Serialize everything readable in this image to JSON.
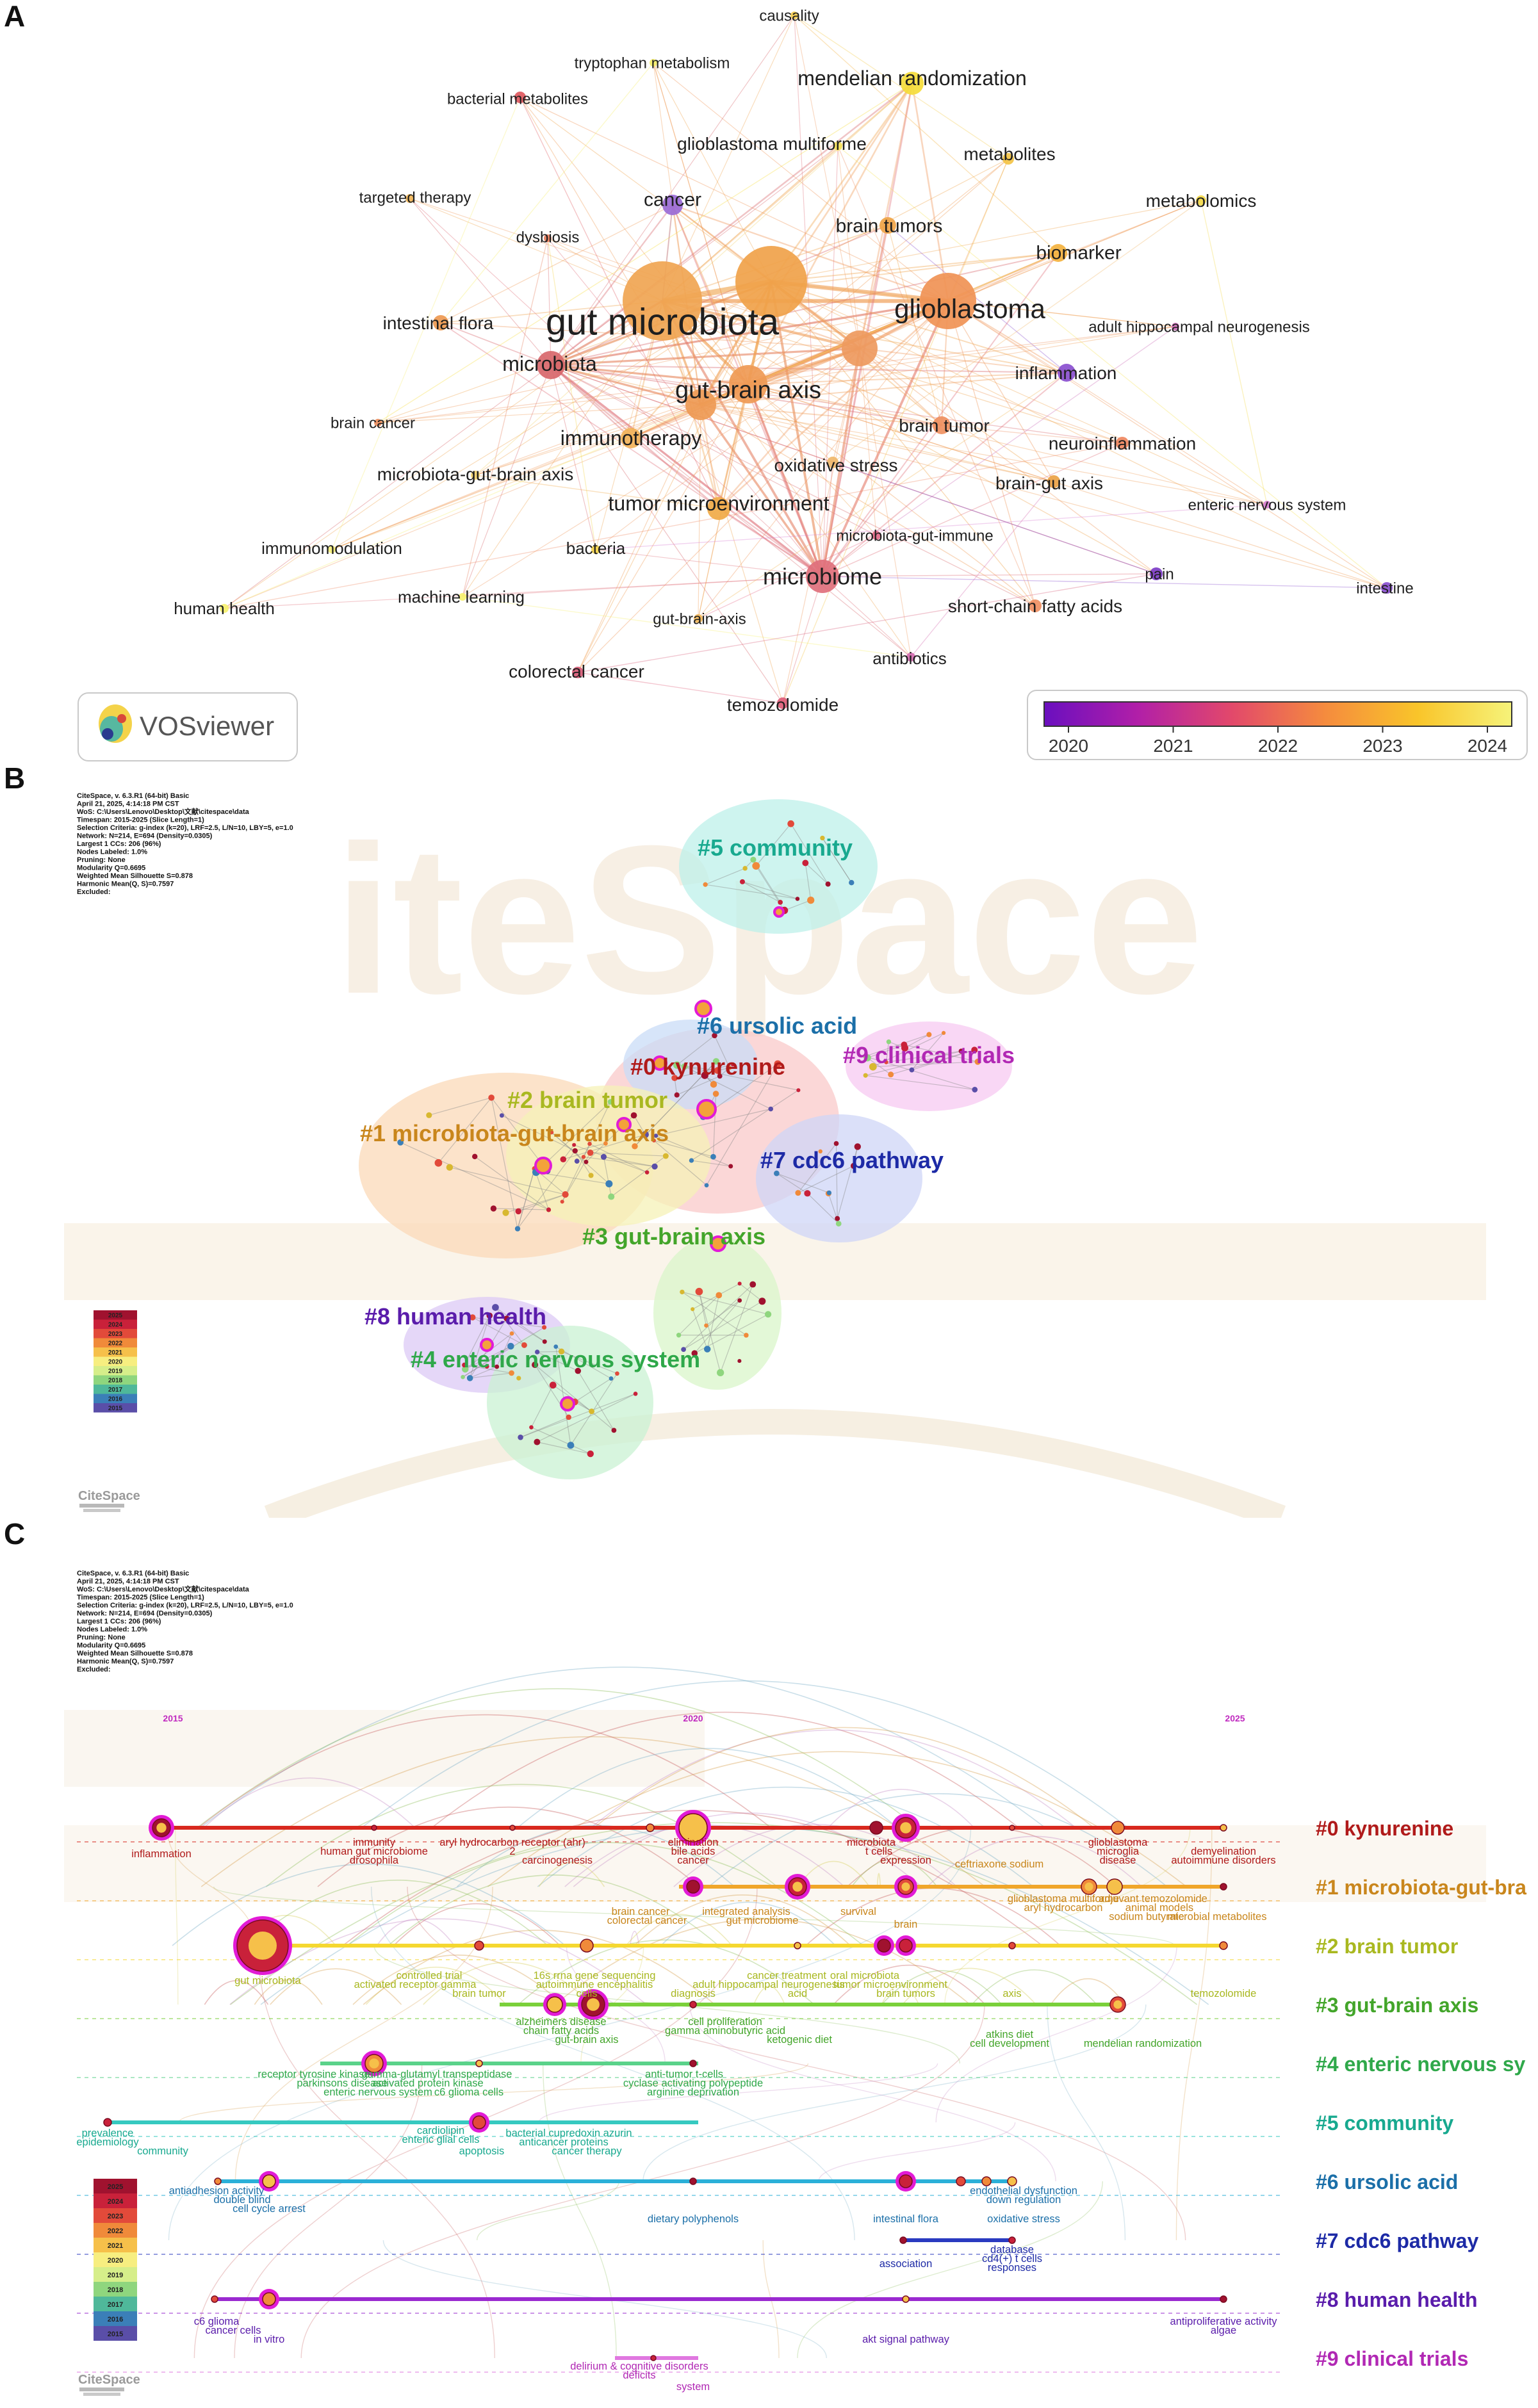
{
  "panel_a": {
    "letter": "A",
    "logo_text": "VOSviewer",
    "legend_ticks": [
      "2020",
      "2021",
      "2022",
      "2023",
      "2024"
    ],
    "legend_colors": [
      "#6a0fbf",
      "#b11fa8",
      "#e2486b",
      "#f58b3e",
      "#f9c52a",
      "#f6f37a"
    ],
    "nodes": [
      {
        "label": "causality",
        "color": "#f3cb4c"
      },
      {
        "label": "tryptophan metabolism",
        "color": "#f6ef6a"
      },
      {
        "label": "mendelian randomization",
        "color": "#f5dc3a"
      },
      {
        "label": "bacterial metabolites",
        "color": "#e0585e"
      },
      {
        "label": "glioblastoma multiforme",
        "color": "#f6e25a"
      },
      {
        "label": "metabolites",
        "color": "#f3c345"
      },
      {
        "label": "targeted therapy",
        "color": "#f3b85a"
      },
      {
        "label": "cancer",
        "color": "#9a6ad6"
      },
      {
        "label": "brain tumors",
        "color": "#f0a446"
      },
      {
        "label": "metabolomics",
        "color": "#f4da4a"
      },
      {
        "label": "dysbiosis",
        "color": "#e47a5a"
      },
      {
        "label": "biomarker",
        "color": "#f3b23f"
      },
      {
        "label": "intestinal flora",
        "color": "#ee9950"
      },
      {
        "label": "gut microbiota",
        "color": "#f0a552"
      },
      {
        "label": "glioblastoma",
        "color": "#f09255"
      },
      {
        "label": "adult hippocampal neurogenesis",
        "color": "#cc6db8"
      },
      {
        "label": "microbiota",
        "color": "#d8676b"
      },
      {
        "label": "gut-brain axis",
        "color": "#ef9a55"
      },
      {
        "label": "inflammation",
        "color": "#8a4fcf"
      },
      {
        "label": "brain cancer",
        "color": "#eb8e5e"
      },
      {
        "label": "brain tumor",
        "color": "#ef9060"
      },
      {
        "label": "immunotherapy",
        "color": "#f2b35a"
      },
      {
        "label": "neuroinflammation",
        "color": "#ef8760"
      },
      {
        "label": "microbiota-gut-brain axis",
        "color": "#f2d26e"
      },
      {
        "label": "oxidative stress",
        "color": "#f0b76a"
      },
      {
        "label": "brain-gut axis",
        "color": "#eba245"
      },
      {
        "label": "tumor microenvironment",
        "color": "#f0aa48"
      },
      {
        "label": "enteric nervous system",
        "color": "#d67ed0"
      },
      {
        "label": "microbiota-gut-immune",
        "color": "#e56a8a"
      },
      {
        "label": "immunomodulation",
        "color": "#f5ef7a"
      },
      {
        "label": "bacteria",
        "color": "#f4d44a"
      },
      {
        "label": "microbiome",
        "color": "#e0707c"
      },
      {
        "label": "pain",
        "color": "#7c3cc7"
      },
      {
        "label": "intestine",
        "color": "#8a4fcf"
      },
      {
        "label": "machine learning",
        "color": "#f6f16f"
      },
      {
        "label": "short-chain fatty acids",
        "color": "#ee8f62"
      },
      {
        "label": "human health",
        "color": "#f6f16f"
      },
      {
        "label": "gut-brain-axis",
        "color": "#f2b85a"
      },
      {
        "label": "antibiotics",
        "color": "#d36ab0"
      },
      {
        "label": "colorectal cancer",
        "color": "#d85b77"
      },
      {
        "label": "temozolomide",
        "color": "#df5d78"
      }
    ]
  },
  "panel_b": {
    "letter": "B",
    "header_lines": [
      "CiteSpace, v. 6.3.R1 (64-bit) Basic",
      "April 21, 2025, 4:14:18 PM CST",
      "WoS: C:\\Users\\Lenovo\\Desktop\\文献\\citespace\\data",
      "Timespan: 2015-2025 (Slice Length=1)",
      "Selection Criteria: g-index (k=20), LRF=2.5, L/N=10, LBY=5, e=1.0",
      "Network: N=214, E=694 (Density=0.0305)",
      "Largest 1 CCs: 206 (96%)",
      "Nodes Labeled: 1.0%",
      "Pruning: None",
      "Modularity Q=0.6695",
      "Weighted Mean Silhouette S=0.878",
      "Harmonic Mean(Q, S)=0.7597",
      "Excluded:"
    ],
    "clusters": [
      {
        "label": "#5 community",
        "color": "#18a98f"
      },
      {
        "label": "#6 ursolic acid",
        "color": "#1b6fa8"
      },
      {
        "label": "#9 clinical trials",
        "color": "#b128b4"
      },
      {
        "label": "#0 kynurenine",
        "color": "#b01a1a"
      },
      {
        "label": "#2 brain tumor",
        "color": "#a9b820"
      },
      {
        "label": "#1 microbiota-gut-brain axis",
        "color": "#c9861c"
      },
      {
        "label": "#7 cdc6 pathway",
        "color": "#1d2aa6"
      },
      {
        "label": "#3 gut-brain axis",
        "color": "#43a52a"
      },
      {
        "label": "#8 human health",
        "color": "#5a1cab"
      },
      {
        "label": "#4 enteric nervous system",
        "color": "#2fa84a"
      }
    ],
    "legend_years": [
      "2025",
      "2024",
      "2023",
      "2022",
      "2021",
      "2020",
      "2019",
      "2018",
      "2017",
      "2016",
      "2015"
    ],
    "legend_colors": [
      "#a0122f",
      "#c9213a",
      "#e24a3a",
      "#f08a3a",
      "#f6c04a",
      "#f7ee80",
      "#d6ee8a",
      "#8fd67e",
      "#4fb89a",
      "#3b7fb8",
      "#5a4ea8"
    ],
    "logo_text": "CiteSpace"
  },
  "panel_c": {
    "letter": "C",
    "header_lines": [
      "CiteSpace, v. 6.3.R1 (64-bit) Basic",
      "April 21, 2025, 4:14:18 PM CST",
      "WoS: C:\\Users\\Lenovo\\Desktop\\文献\\citespace\\data",
      "Timespan: 2015-2025 (Slice Length=1)",
      "Selection Criteria: g-index (k=20), LRF=2.5, L/N=10, LBY=5, e=1.0",
      "Network: N=214, E=694 (Density=0.0305)",
      "Largest 1 CCs: 206 (96%)",
      "Nodes Labeled: 1.0%",
      "Pruning: None",
      "Modularity Q=0.6695",
      "Weighted Mean Silhouette S=0.878",
      "Harmonic Mean(Q, S)=0.7597",
      "Excluded:"
    ],
    "years": [
      "2015",
      "2020",
      "2025"
    ],
    "clusters": [
      {
        "label": "#0 kynurenine",
        "color": "#b01a1a",
        "line": "#d8281e"
      },
      {
        "label": "#1 microbiota-gut-bra",
        "color": "#c9861c",
        "line": "#f0a62a"
      },
      {
        "label": "#2 brain tumor",
        "color": "#a9b820",
        "line": "#f5d830"
      },
      {
        "label": "#3 gut-brain axis",
        "color": "#43a52a",
        "line": "#7ad03a"
      },
      {
        "label": "#4 enteric nervous sy",
        "color": "#2fa84a",
        "line": "#5ad28a"
      },
      {
        "label": "#5 community",
        "color": "#18a98f",
        "line": "#36c9c0"
      },
      {
        "label": "#6 ursolic acid",
        "color": "#1b6fa8",
        "line": "#2bb0d8"
      },
      {
        "label": "#7 cdc6 pathway",
        "color": "#1d2aa6",
        "line": "#2a3ac0"
      },
      {
        "label": "#8 human health",
        "color": "#5a1cab",
        "line": "#9a2ad0"
      },
      {
        "label": "#9 clinical trials",
        "color": "#b128b4",
        "line": "#e078e0"
      }
    ],
    "terms": [
      {
        "text": "inflammation",
        "color": "#b01a1a"
      },
      {
        "text": "immunity",
        "color": "#b01a1a"
      },
      {
        "text": "human gut microbiome",
        "color": "#b01a1a"
      },
      {
        "text": "drosophila",
        "color": "#b01a1a"
      },
      {
        "text": "aryl hydrocarbon receptor (ahr)",
        "color": "#b01a1a"
      },
      {
        "text": "2",
        "color": "#b01a1a"
      },
      {
        "text": "carcinogenesis",
        "color": "#b01a1a"
      },
      {
        "text": "elimination",
        "color": "#b01a1a"
      },
      {
        "text": "bile acids",
        "color": "#b01a1a"
      },
      {
        "text": "cancer",
        "color": "#b01a1a"
      },
      {
        "text": "microbiota",
        "color": "#b01a1a"
      },
      {
        "text": "t cells",
        "color": "#b01a1a"
      },
      {
        "text": "expression",
        "color": "#b01a1a"
      },
      {
        "text": "glioblastoma",
        "color": "#b01a1a"
      },
      {
        "text": "microglia",
        "color": "#b01a1a"
      },
      {
        "text": "disease",
        "color": "#b01a1a"
      },
      {
        "text": "demyelination",
        "color": "#b01a1a"
      },
      {
        "text": "autoimmune disorders",
        "color": "#b01a1a"
      },
      {
        "text": "ceftriaxone sodium",
        "color": "#c9861c"
      },
      {
        "text": "glioblastoma multiforme",
        "color": "#c9861c"
      },
      {
        "text": "adjuvant temozolomide",
        "color": "#c9861c"
      },
      {
        "text": "aryl hydrocarbon",
        "color": "#c9861c"
      },
      {
        "text": "animal models",
        "color": "#c9861c"
      },
      {
        "text": "sodium butyrate",
        "color": "#c9861c"
      },
      {
        "text": "microbial metabolites",
        "color": "#c9861c"
      },
      {
        "text": "brain cancer",
        "color": "#c9861c"
      },
      {
        "text": "integrated analysis",
        "color": "#c9861c"
      },
      {
        "text": "survival",
        "color": "#c9861c"
      },
      {
        "text": "colorectal cancer",
        "color": "#c9861c"
      },
      {
        "text": "gut microbiome",
        "color": "#c9861c"
      },
      {
        "text": "brain",
        "color": "#c9861c"
      },
      {
        "text": "gut microbiota",
        "color": "#a9b820"
      },
      {
        "text": "controlled trial",
        "color": "#a9b820"
      },
      {
        "text": "activated receptor gamma",
        "color": "#a9b820"
      },
      {
        "text": "brain tumor",
        "color": "#a9b820"
      },
      {
        "text": "16s rrna gene sequencing",
        "color": "#a9b820"
      },
      {
        "text": "autoimmune encephalitis",
        "color": "#a9b820"
      },
      {
        "text": "cells",
        "color": "#a9b820"
      },
      {
        "text": "diagnosis",
        "color": "#a9b820"
      },
      {
        "text": "cancer treatment",
        "color": "#a9b820"
      },
      {
        "text": "adult hippocampal neurogenesis",
        "color": "#a9b820"
      },
      {
        "text": "acid",
        "color": "#a9b820"
      },
      {
        "text": "oral microbiota",
        "color": "#a9b820"
      },
      {
        "text": "tumor microenvironment",
        "color": "#a9b820"
      },
      {
        "text": "brain tumors",
        "color": "#a9b820"
      },
      {
        "text": "axis",
        "color": "#a9b820"
      },
      {
        "text": "temozolomide",
        "color": "#a9b820"
      },
      {
        "text": "alzheimers disease",
        "color": "#43a52a"
      },
      {
        "text": "chain fatty acids",
        "color": "#43a52a"
      },
      {
        "text": "gut-brain axis",
        "color": "#43a52a"
      },
      {
        "text": "cell proliferation",
        "color": "#43a52a"
      },
      {
        "text": "gamma aminobutyric acid",
        "color": "#43a52a"
      },
      {
        "text": "ketogenic diet",
        "color": "#43a52a"
      },
      {
        "text": "atkins diet",
        "color": "#43a52a"
      },
      {
        "text": "cell development",
        "color": "#43a52a"
      },
      {
        "text": "mendelian randomization",
        "color": "#43a52a"
      },
      {
        "text": "receptor tyrosine kinase",
        "color": "#2fa84a"
      },
      {
        "text": "gamma-glutamyl transpeptidase",
        "color": "#2fa84a"
      },
      {
        "text": "parkinsons disease",
        "color": "#2fa84a"
      },
      {
        "text": "activated protein kinase",
        "color": "#2fa84a"
      },
      {
        "text": "enteric nervous system",
        "color": "#2fa84a"
      },
      {
        "text": "c6 glioma cells",
        "color": "#2fa84a"
      },
      {
        "text": "anti-tumor t-cells",
        "color": "#2fa84a"
      },
      {
        "text": "cyclase activating polypeptide",
        "color": "#2fa84a"
      },
      {
        "text": "arginine deprivation",
        "color": "#2fa84a"
      },
      {
        "text": "prevalence",
        "color": "#18a98f"
      },
      {
        "text": "epidemiology",
        "color": "#18a98f"
      },
      {
        "text": "community",
        "color": "#18a98f"
      },
      {
        "text": "cardiolipin",
        "color": "#18a98f"
      },
      {
        "text": "enteric glial cells",
        "color": "#18a98f"
      },
      {
        "text": "apoptosis",
        "color": "#18a98f"
      },
      {
        "text": "bacterial cupredoxin azurin",
        "color": "#18a98f"
      },
      {
        "text": "anticancer proteins",
        "color": "#18a98f"
      },
      {
        "text": "cancer therapy",
        "color": "#18a98f"
      },
      {
        "text": "antiadhesion activity",
        "color": "#1b6fa8"
      },
      {
        "text": "double blind",
        "color": "#1b6fa8"
      },
      {
        "text": "cell cycle arrest",
        "color": "#1b6fa8"
      },
      {
        "text": "dietary polyphenols",
        "color": "#1b6fa8"
      },
      {
        "text": "endothelial dysfunction",
        "color": "#1b6fa8"
      },
      {
        "text": "down regulation",
        "color": "#1b6fa8"
      },
      {
        "text": "intestinal flora",
        "color": "#1b6fa8"
      },
      {
        "text": "oxidative stress",
        "color": "#1b6fa8"
      },
      {
        "text": "association",
        "color": "#1d2aa6"
      },
      {
        "text": "database",
        "color": "#1d2aa6"
      },
      {
        "text": "cd4(+) t cells",
        "color": "#1d2aa6"
      },
      {
        "text": "responses",
        "color": "#1d2aa6"
      },
      {
        "text": "c6 glioma",
        "color": "#5a1cab"
      },
      {
        "text": "cancer cells",
        "color": "#5a1cab"
      },
      {
        "text": "in vitro",
        "color": "#5a1cab"
      },
      {
        "text": "akt signal pathway",
        "color": "#5a1cab"
      },
      {
        "text": "antiproliferative activity",
        "color": "#5a1cab"
      },
      {
        "text": "algae",
        "color": "#5a1cab"
      },
      {
        "text": "delirium & cognitive disorders",
        "color": "#b128b4"
      },
      {
        "text": "deficits",
        "color": "#b128b4"
      },
      {
        "text": "system",
        "color": "#b128b4"
      }
    ],
    "legend_years": [
      "2025",
      "2024",
      "2023",
      "2022",
      "2021",
      "2020",
      "2019",
      "2018",
      "2017",
      "2016",
      "2015"
    ],
    "logo_text": "CiteSpace"
  }
}
